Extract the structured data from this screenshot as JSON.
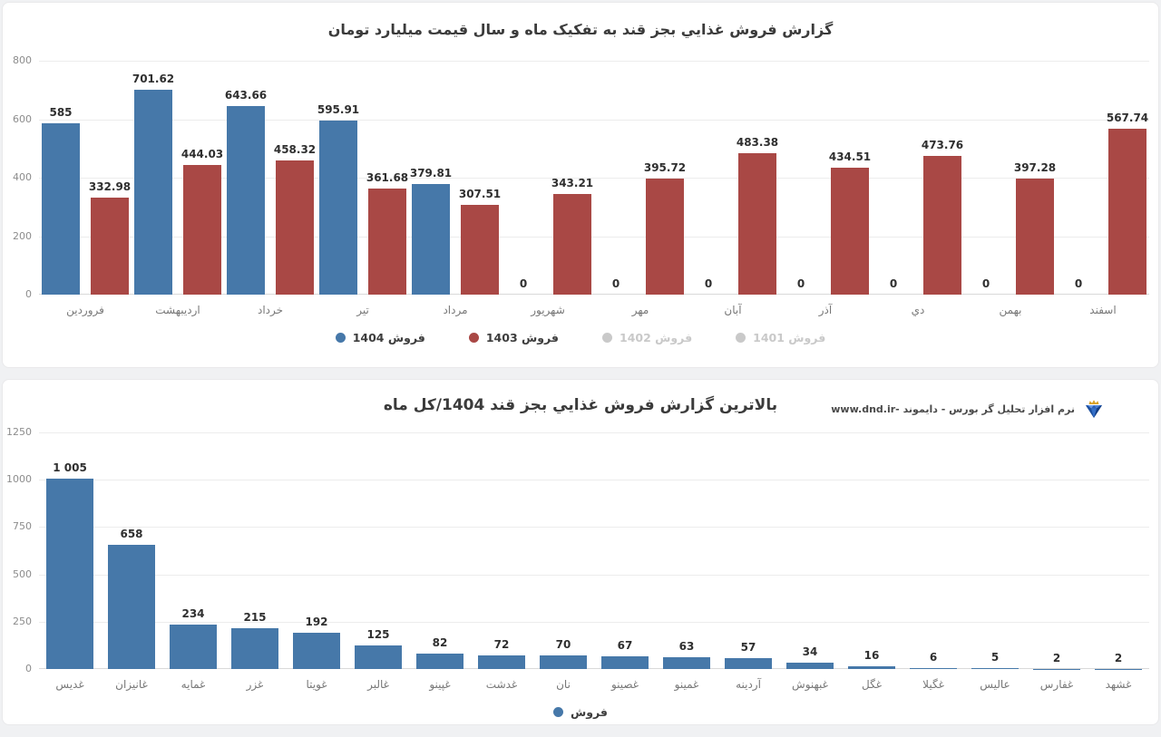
{
  "colors": {
    "blue": "#4678a9",
    "red": "#a94845",
    "disabled": "#c9c9c9",
    "label": "#2f2f2f"
  },
  "watermark": {
    "text": "نرم افزار تحليل گر بورس - دايموند -www.dnd.ir",
    "icon": "diamond-crown-icon"
  },
  "chart_data": [
    {
      "type": "bar",
      "title": "گزارش فروش غذايي بجز قند به تفکيک ماه و سال قيمت ميليارد تومان",
      "categories": [
        "فروردين",
        "ارديبهشت",
        "خرداد",
        "تير",
        "مرداد",
        "شهريور",
        "مهر",
        "آبان",
        "آذر",
        "دي",
        "بهمن",
        "اسفند"
      ],
      "series": [
        {
          "name": "فروش 1404",
          "color": "#4678a9",
          "enabled": true,
          "values": [
            585,
            701.62,
            643.66,
            595.91,
            379.81,
            0,
            0,
            0,
            0,
            0,
            0,
            0
          ],
          "labels": [
            "585",
            "701.62",
            "643.66",
            "595.91",
            "379.81",
            "0",
            "0",
            "0",
            "0",
            "0",
            "0",
            "0"
          ]
        },
        {
          "name": "فروش 1403",
          "color": "#a94845",
          "enabled": true,
          "values": [
            332.98,
            444.03,
            458.32,
            361.68,
            307.51,
            343.21,
            395.72,
            483.38,
            434.51,
            473.76,
            397.28,
            567.74
          ],
          "labels": [
            "332.98",
            "444.03",
            "458.32",
            "361.68",
            "307.51",
            "343.21",
            "395.72",
            "483.38",
            "434.51",
            "473.76",
            "397.28",
            "567.74"
          ]
        },
        {
          "name": "فروش 1402",
          "enabled": false
        },
        {
          "name": "فروش 1401",
          "enabled": false
        }
      ],
      "ylim": [
        0,
        800
      ],
      "yticks": [
        0,
        200,
        400,
        600,
        800
      ],
      "grid": true,
      "legend_position": "bottom"
    },
    {
      "type": "bar",
      "title": "بالاترين گزارش فروش غذايي بجز قند 1404/کل ماه",
      "categories": [
        "غديس",
        "غانيزان",
        "غمايه",
        "غزر",
        "غويتا",
        "غالبر",
        "غپينو",
        "غدشت",
        "نان",
        "غصينو",
        "غمينو",
        "آردينه",
        "غبهنوش",
        "غگل",
        "غگيلا",
        "عاليس",
        "غفارس",
        "غشهد"
      ],
      "series": [
        {
          "name": "فروش",
          "color": "#4678a9",
          "enabled": true,
          "values": [
            1005,
            658,
            234,
            215,
            192,
            125,
            82,
            72,
            70,
            67,
            63,
            57,
            34,
            16,
            6,
            5,
            2,
            2
          ],
          "labels": [
            "1 005",
            "658",
            "234",
            "215",
            "192",
            "125",
            "82",
            "72",
            "70",
            "67",
            "63",
            "57",
            "34",
            "16",
            "6",
            "5",
            "2",
            "2"
          ]
        }
      ],
      "ylim": [
        0,
        1250
      ],
      "yticks": [
        0,
        250,
        500,
        750,
        1000,
        1250
      ],
      "grid": true,
      "legend_position": "bottom"
    }
  ]
}
